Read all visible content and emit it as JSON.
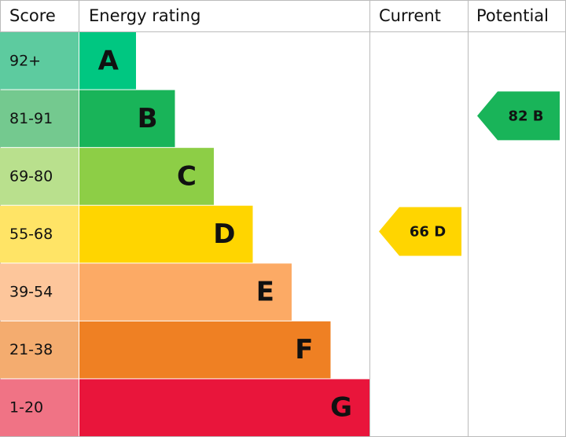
{
  "header": {
    "score": "Score",
    "rating": "Energy rating",
    "current": "Current",
    "potential": "Potential"
  },
  "bands": [
    {
      "range": "92+",
      "letter": "A",
      "color": "#00c781",
      "tint": "#5dcb9f"
    },
    {
      "range": "81-91",
      "letter": "B",
      "color": "#19b459",
      "tint": "#74c98f"
    },
    {
      "range": "69-80",
      "letter": "C",
      "color": "#8dce46",
      "tint": "#b9e08d"
    },
    {
      "range": "55-68",
      "letter": "D",
      "color": "#ffd500",
      "tint": "#ffe466"
    },
    {
      "range": "39-54",
      "letter": "E",
      "color": "#fcaa65",
      "tint": "#fdc69b"
    },
    {
      "range": "21-38",
      "letter": "F",
      "color": "#ef8023",
      "tint": "#f4ac6f"
    },
    {
      "range": "1-20",
      "letter": "G",
      "color": "#e9153b",
      "tint": "#f07385"
    }
  ],
  "current": {
    "score": 66,
    "letter": "D",
    "color": "#ffd500"
  },
  "potential": {
    "score": 82,
    "letter": "B",
    "color": "#19b459"
  }
}
